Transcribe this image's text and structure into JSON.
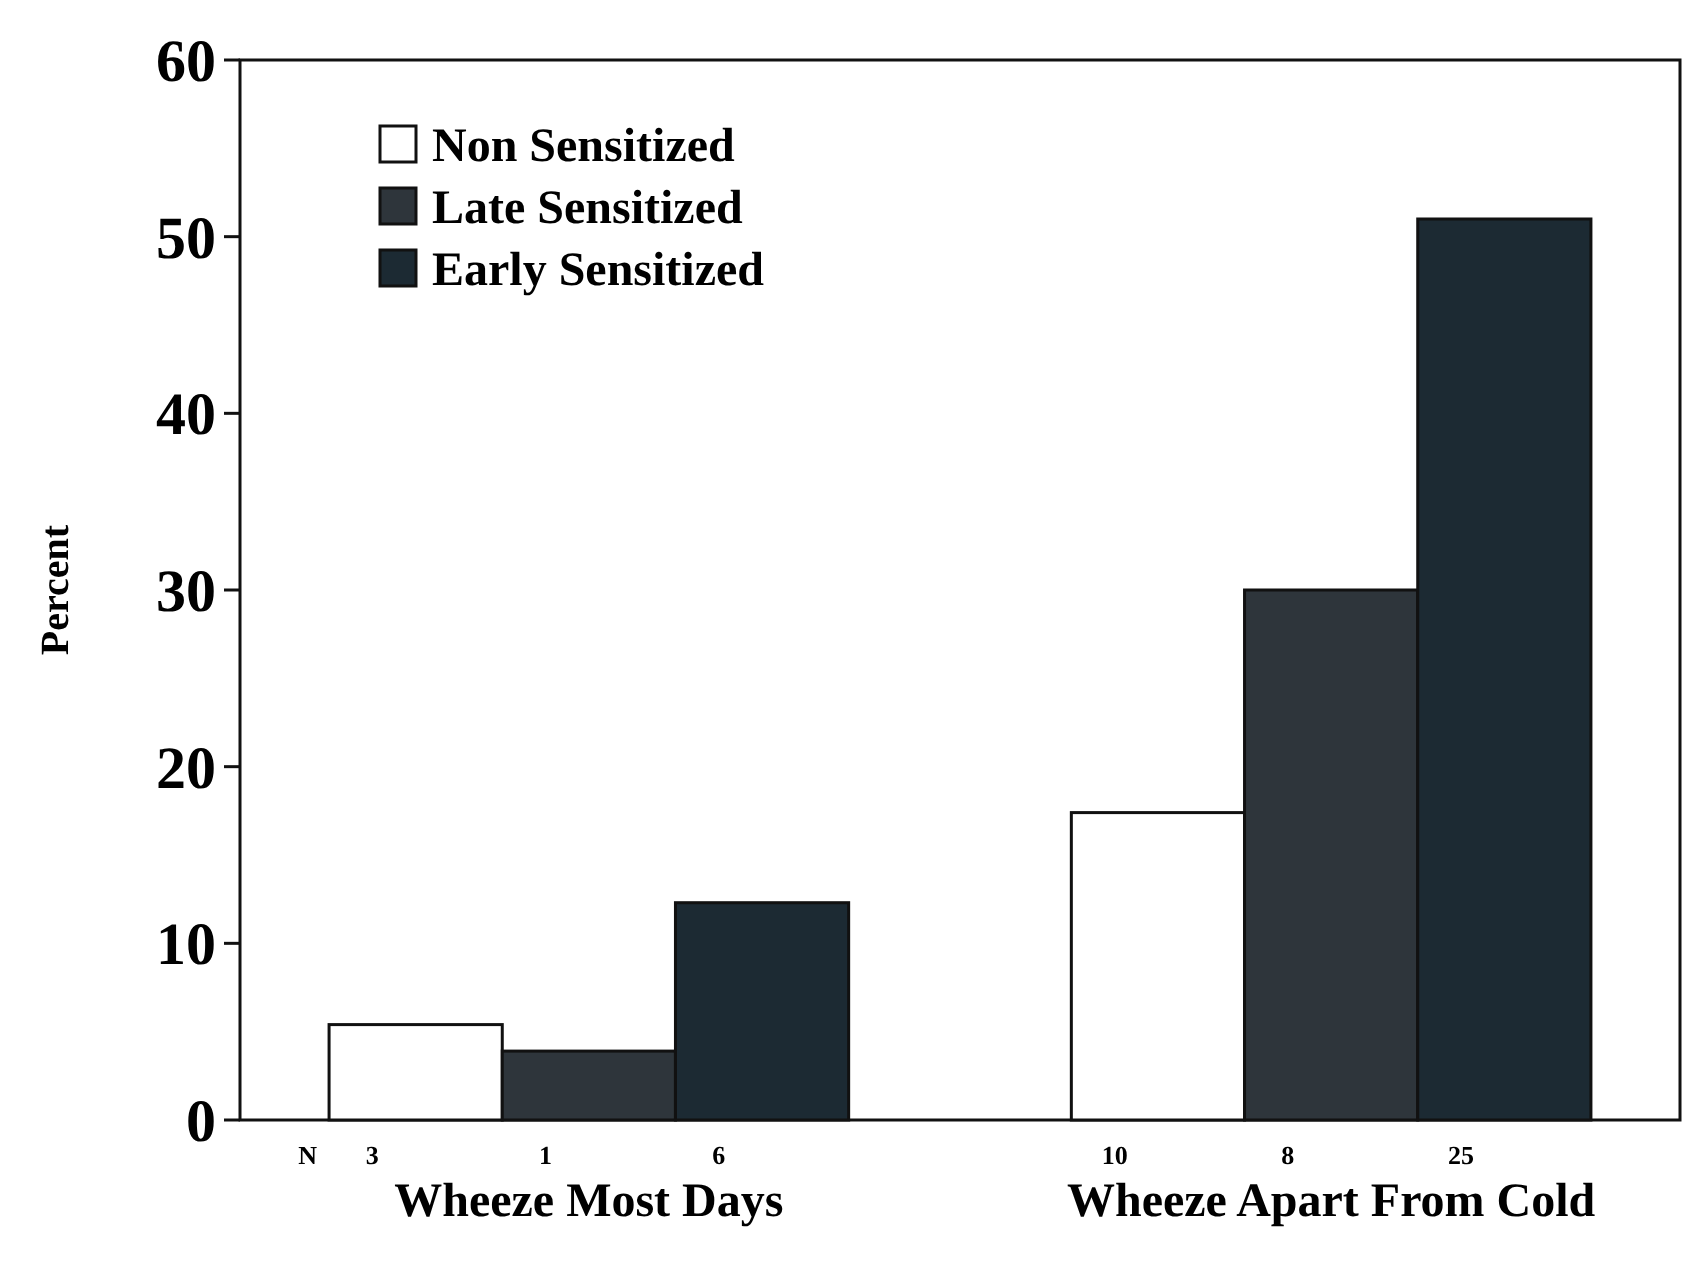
{
  "chart_data": {
    "type": "bar",
    "ylabel": "Percent",
    "categories": [
      "Wheeze Most Days",
      "Wheeze Apart From Cold"
    ],
    "series": [
      {
        "name": "Non Sensitized",
        "color": "#ffffff",
        "values": [
          5.4,
          17.4
        ]
      },
      {
        "name": "Late Sensitized",
        "color": "#2e353b",
        "values": [
          3.9,
          30
        ]
      },
      {
        "name": "Early Sensitized",
        "color": "#1c2a33",
        "values": [
          12.3,
          51
        ]
      }
    ],
    "ylim": [
      0,
      60
    ],
    "yticks": [
      0,
      10,
      20,
      30,
      40,
      50,
      60
    ],
    "legend": "top left",
    "grid": false,
    "annotations": [
      "N",
      "3",
      "1",
      "6",
      "10",
      "8",
      "25"
    ]
  }
}
